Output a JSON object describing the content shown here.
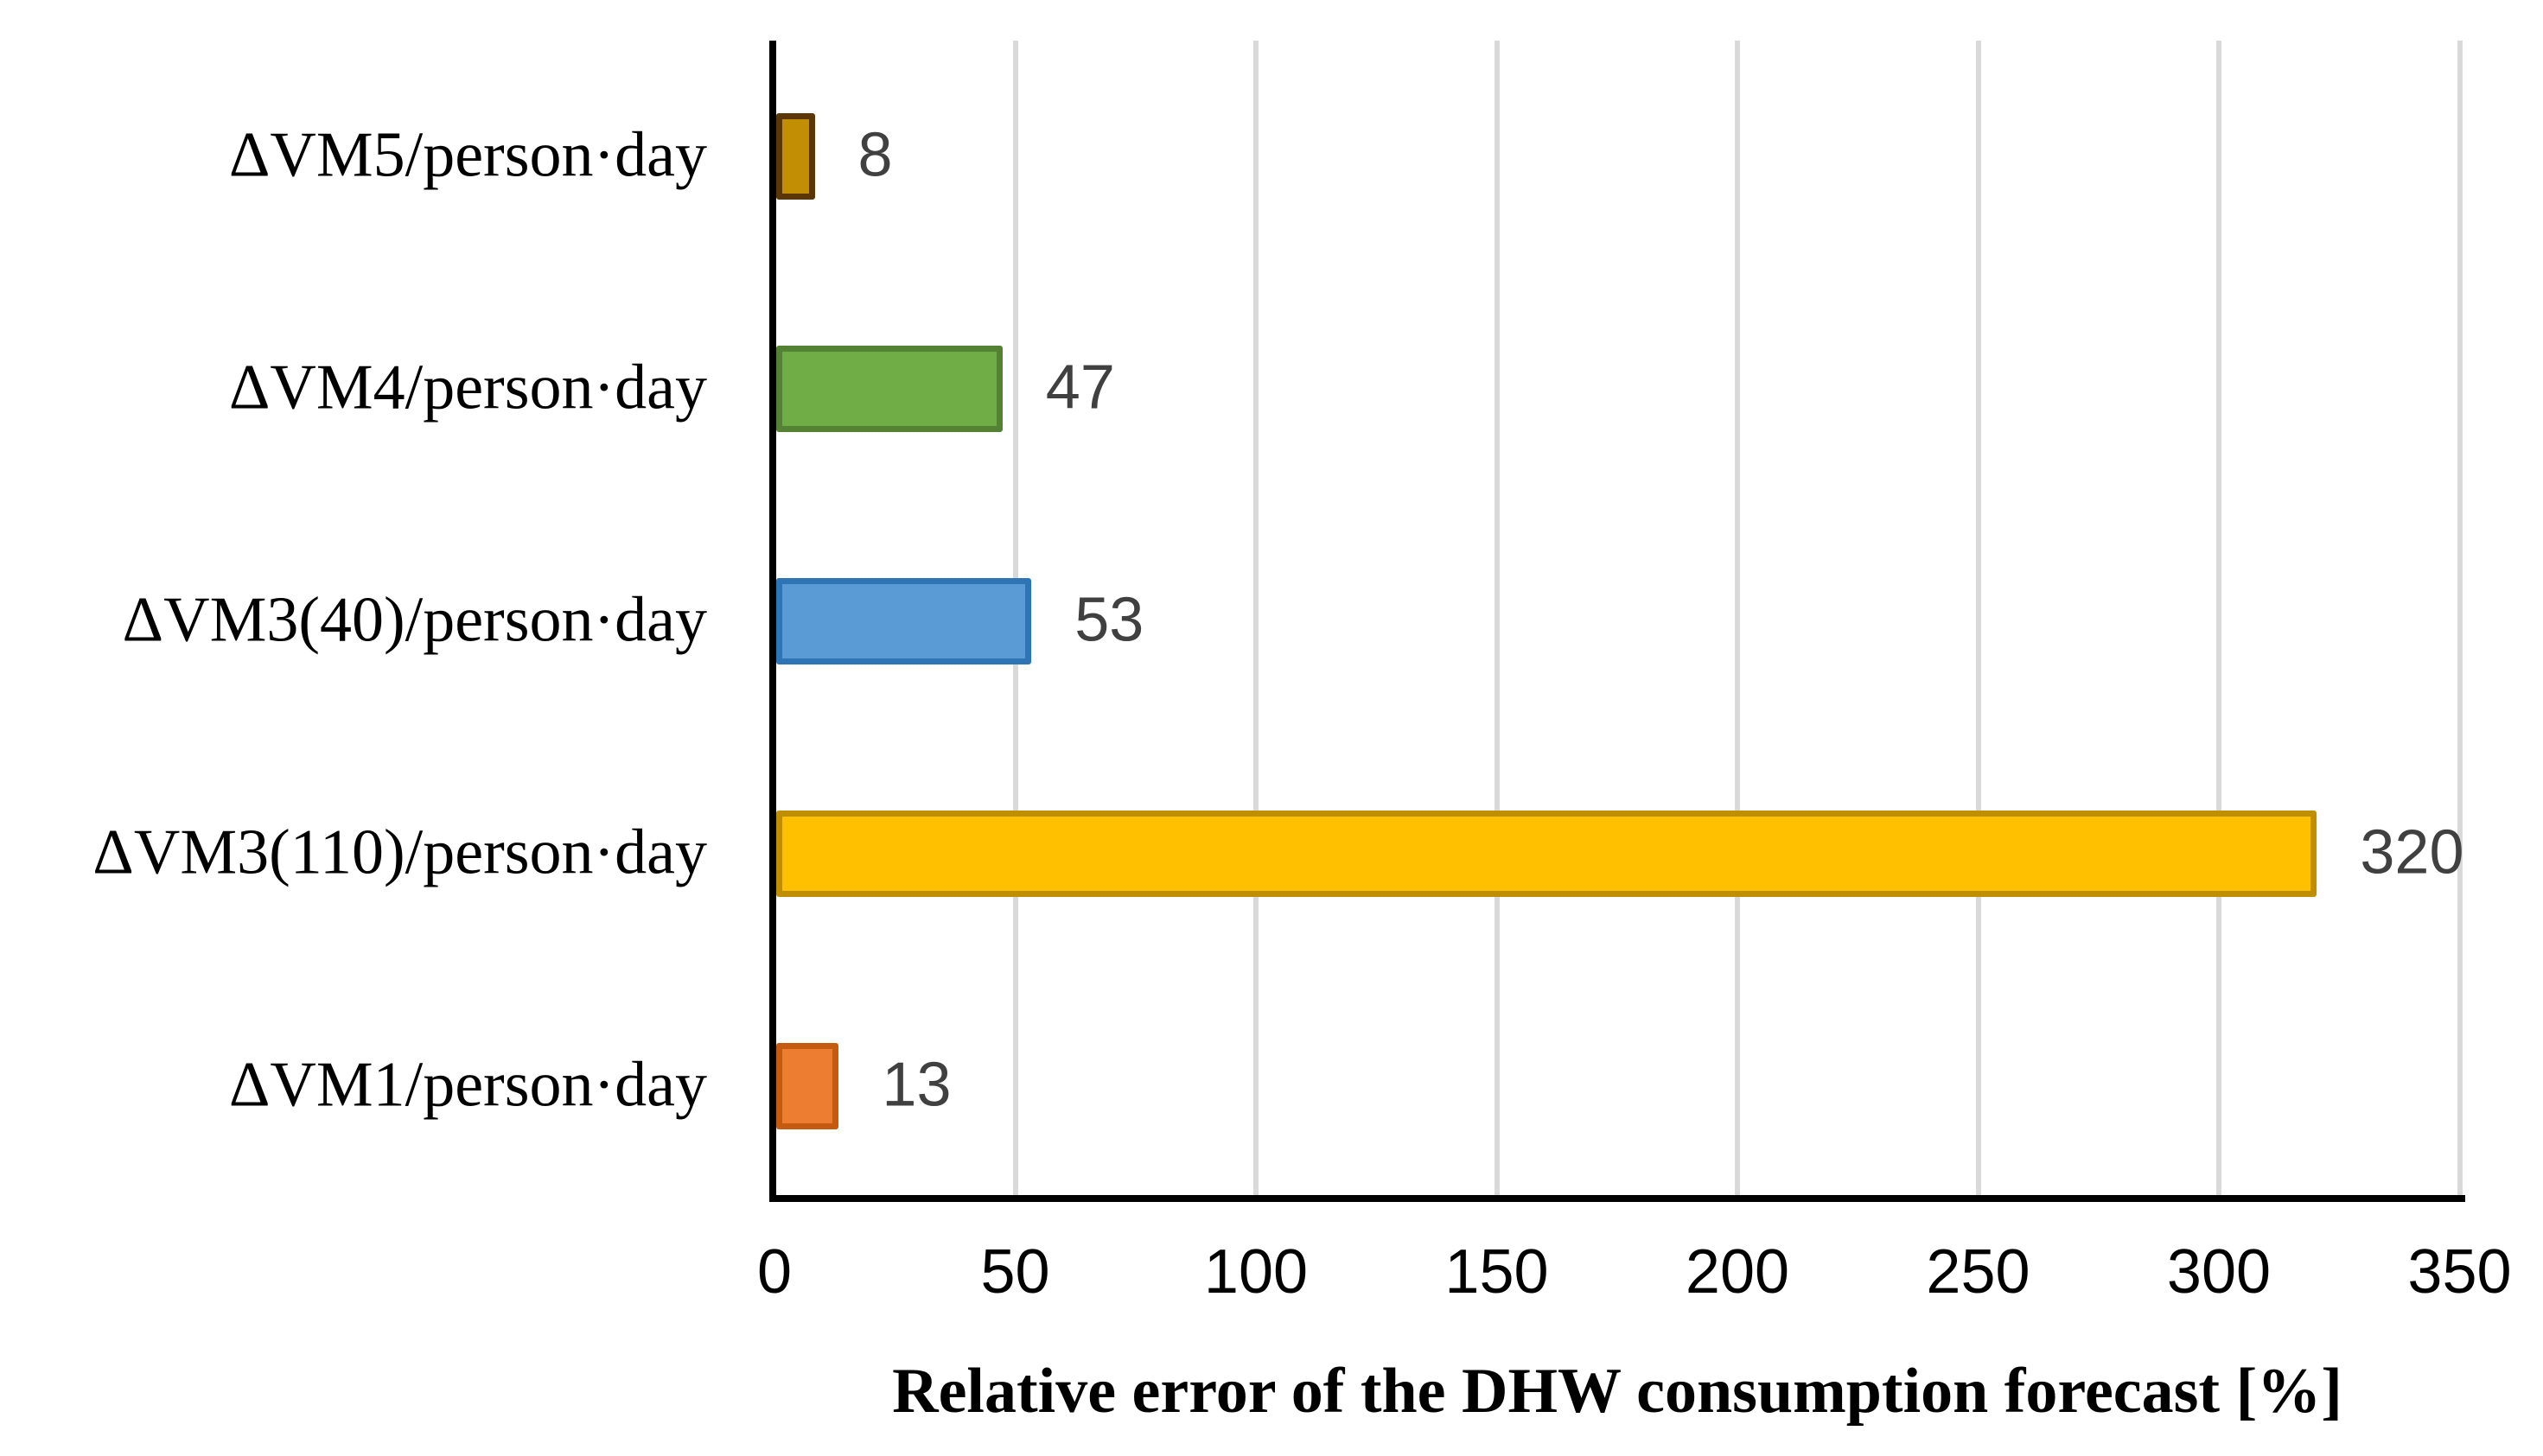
{
  "chart_data": {
    "type": "bar",
    "orientation": "horizontal",
    "title": "",
    "xlabel": "Relative error of the DHW consumption forecast [%]",
    "ylabel": "",
    "xlim": [
      0,
      350
    ],
    "xticks": [
      0,
      50,
      100,
      150,
      200,
      250,
      300,
      350
    ],
    "grid": true,
    "legend": false,
    "gridline_color": "#D9D9D9",
    "axis_color": "#000000",
    "tick_label_color": "#000000",
    "value_label_color": "#404040",
    "background_color": "#FFFFFF",
    "categories": [
      "ΔVM5/person·day",
      "ΔVM4/person·day",
      "ΔVM3(40)/person·day",
      "ΔVM3(110)/person·day",
      "ΔVM1/person·day"
    ],
    "values": [
      8,
      47,
      53,
      320,
      13
    ],
    "bars": [
      {
        "category": "ΔVM5/person·day",
        "value": 8,
        "label": "8",
        "fill": "#C28F04",
        "border": "#5B3707"
      },
      {
        "category": "ΔVM4/person·day",
        "value": 47,
        "label": "47",
        "fill": "#70AD47",
        "border": "#548235"
      },
      {
        "category": "ΔVM3(40)/person·day",
        "value": 53,
        "label": "53",
        "fill": "#5B9BD5",
        "border": "#2E75B6"
      },
      {
        "category": "ΔVM3(110)/person·day",
        "value": 320,
        "label": "320",
        "fill": "#FFC000",
        "border": "#BF8F00"
      },
      {
        "category": "ΔVM1/person·day",
        "value": 13,
        "label": "13",
        "fill": "#ED7D31",
        "border": "#C55A11"
      }
    ]
  }
}
